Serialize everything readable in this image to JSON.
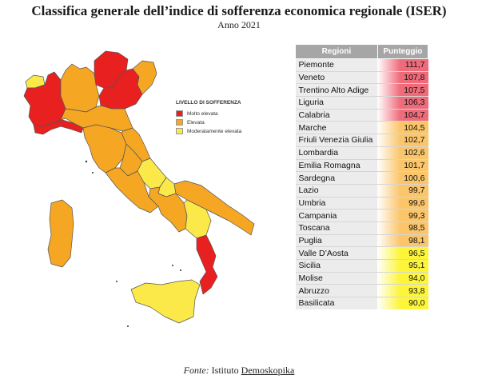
{
  "title": "Classifica generale dell’indice di sofferenza economica regionale (ISER)",
  "subtitle": "Anno 2021",
  "legend": {
    "title": "LIVELLO DI SOFFERENZA",
    "items": [
      {
        "label": "Molto elevata",
        "color": "#e8201f"
      },
      {
        "label": "Elevata",
        "color": "#f5a623"
      },
      {
        "label": "Moderatamente elevata",
        "color": "#fbe94a"
      }
    ]
  },
  "table": {
    "headers": [
      "Regioni",
      "Punteggio"
    ],
    "rows": [
      {
        "region": "Piemonte",
        "score": "111,7",
        "level": "high"
      },
      {
        "region": "Veneto",
        "score": "107,8",
        "level": "high"
      },
      {
        "region": "Trentino Alto Adige",
        "score": "107,5",
        "level": "high"
      },
      {
        "region": "Liguria",
        "score": "106,3",
        "level": "high"
      },
      {
        "region": "Calabria",
        "score": "104,7",
        "level": "high"
      },
      {
        "region": "Marche",
        "score": "104,5",
        "level": "mid"
      },
      {
        "region": "Friuli Venezia Giulia",
        "score": "102,7",
        "level": "mid"
      },
      {
        "region": "Lombardia",
        "score": "102,6",
        "level": "mid"
      },
      {
        "region": "Emilia Romagna",
        "score": "101,7",
        "level": "mid"
      },
      {
        "region": "Sardegna",
        "score": "100,6",
        "level": "mid"
      },
      {
        "region": "Lazio",
        "score": "99,7",
        "level": "mid"
      },
      {
        "region": "Umbria",
        "score": "99,6",
        "level": "mid"
      },
      {
        "region": "Campania",
        "score": "99,3",
        "level": "mid"
      },
      {
        "region": "Toscana",
        "score": "98,5",
        "level": "mid"
      },
      {
        "region": "Puglia",
        "score": "98,1",
        "level": "mid"
      },
      {
        "region": "Valle D’Aosta",
        "score": "96,5",
        "level": "low"
      },
      {
        "region": "Sicilia",
        "score": "95,1",
        "level": "low"
      },
      {
        "region": "Molise",
        "score": "94,0",
        "level": "low"
      },
      {
        "region": "Abruzzo",
        "score": "93,8",
        "level": "low"
      },
      {
        "region": "Basilicata",
        "score": "90,0",
        "level": "low"
      }
    ]
  },
  "source": {
    "prefix": "Fonte:",
    "middle": " Istituto ",
    "org": "Demoskopika"
  },
  "colors": {
    "high": "#e8201f",
    "mid": "#f5a623",
    "low": "#fbe94a",
    "high_cell": "#f06b7a",
    "mid_cell": "#fbc56a",
    "low_cell": "#fdf53a"
  }
}
